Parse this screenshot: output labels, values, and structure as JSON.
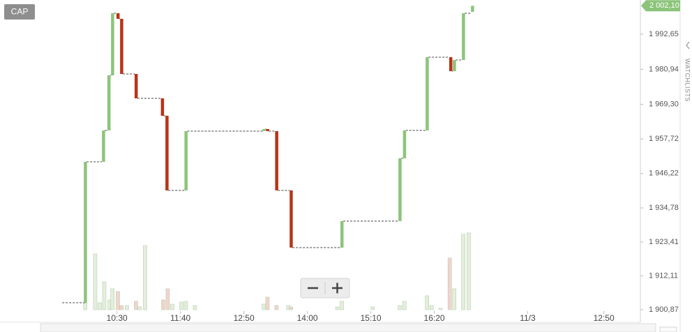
{
  "chart_data": {
    "type": "candlestick",
    "button": "CAP",
    "side_tab": "WATCHLISTS",
    "last_price": {
      "value": 2002.1,
      "label": "2 002,10"
    },
    "last_price_color": "#8cc47a",
    "up_color": "#8cc47a",
    "down_color": "#b83318",
    "x": [
      595,
      615,
      621,
      625,
      631,
      635,
      651,
      680,
      685,
      706,
      792,
      796,
      806,
      822,
      878,
      942,
      947,
      972,
      998,
      1002,
      1012,
      1022
    ],
    "open": [
      1903.19,
      1950.13,
      1960.58,
      1978.94,
      1999.62,
      1997.76,
      1979.4,
      1971.27,
      1965.46,
      1940.6,
      1960.35,
      1961.05,
      1960.35,
      1940.6,
      1921.55,
      1930.38,
      1951.29,
      1960.58,
      1984.98,
      1980.33,
      1984.05,
      2000.08
    ],
    "close": [
      1950.13,
      1960.58,
      1978.94,
      1999.62,
      1997.76,
      1979.4,
      1971.27,
      1965.46,
      1940.6,
      1960.35,
      1961.05,
      1960.35,
      1940.6,
      1921.55,
      1930.38,
      1951.29,
      1960.58,
      1984.98,
      1980.33,
      1984.05,
      1999.62,
      2002.1
    ],
    "volume_series": [
      {
        "color": "#e3efdc",
        "x": [
          595,
          606,
          611,
          616,
          622,
          625,
          641,
          655,
          661,
          691,
          701,
          706,
          716,
          792,
          819,
          873,
          878,
          912,
          942,
          947,
          972,
          977,
          987,
          1002,
          1012,
          1018
        ],
        "values": [
          10,
          80,
          10,
          40,
          14,
          30,
          6,
          4,
          92,
          8,
          11,
          12,
          6,
          8,
          6,
          4,
          12,
          4,
          6,
          12,
          20,
          6,
          2,
          30,
          108,
          110
        ]
      },
      {
        "color": "#f2d4cd",
        "x": [
          631,
          635,
          651,
          681,
          686,
          796,
          806,
          822,
          997
        ],
        "values": [
          26,
          6,
          12,
          14,
          30,
          18,
          6,
          4,
          74
        ]
      }
    ],
    "xlim": [
      501,
      1205
    ],
    "xticks": [
      {
        "value": 630,
        "label": "10:30"
      },
      {
        "value": 700,
        "label": "11:40"
      },
      {
        "value": 770,
        "label": "12:50"
      },
      {
        "value": 840,
        "label": "14:00"
      },
      {
        "value": 910,
        "label": "15:10"
      },
      {
        "value": 980,
        "label": "16:20"
      },
      {
        "value": 1083,
        "label": "11/3"
      },
      {
        "value": 1167,
        "label": "12:50"
      }
    ],
    "ylim": [
      1899.94,
      2004.03
    ],
    "yticks": [
      {
        "value": 1900.87,
        "label": "1 900,87"
      },
      {
        "value": 1912.11,
        "label": "1 912,11"
      },
      {
        "value": 1923.41,
        "label": "1 923,41"
      },
      {
        "value": 1934.78,
        "label": "1 934,78"
      },
      {
        "value": 1946.22,
        "label": "1 946,22"
      },
      {
        "value": 1957.72,
        "label": "1 957,72"
      },
      {
        "value": 1969.3,
        "label": "1 969,30"
      },
      {
        "value": 1980.94,
        "label": "1 980,94"
      },
      {
        "value": 1992.65,
        "label": "1 992,65"
      }
    ],
    "y2lim": [
      0,
      448
    ]
  }
}
